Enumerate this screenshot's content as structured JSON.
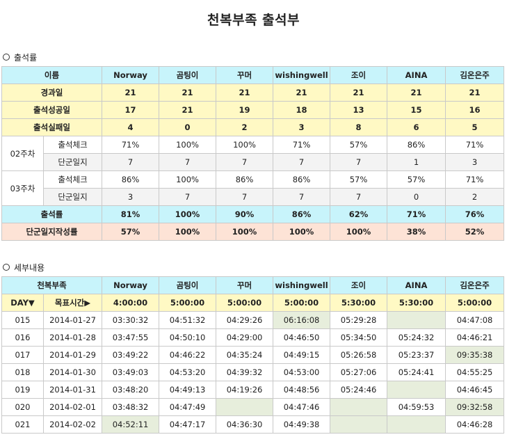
{
  "title": "천복부족 출석부",
  "section1": {
    "title": "출석률",
    "header": [
      "이름",
      "Norway",
      "곰팅이",
      "꾸머",
      "wishingwell",
      "조이",
      "AINA",
      "김온은주"
    ],
    "elapsed": {
      "label": "경과일",
      "values": [
        "21",
        "21",
        "21",
        "21",
        "21",
        "21",
        "21"
      ]
    },
    "success": {
      "label": "출석성공일",
      "values": [
        "17",
        "21",
        "19",
        "18",
        "13",
        "15",
        "16"
      ]
    },
    "fail": {
      "label": "출석실패일",
      "values": [
        "4",
        "0",
        "2",
        "3",
        "8",
        "6",
        "5"
      ]
    },
    "weeks": [
      {
        "week": "02주차",
        "check": {
          "label": "출석체크",
          "values": [
            "71%",
            "100%",
            "100%",
            "71%",
            "57%",
            "86%",
            "71%"
          ]
        },
        "log": {
          "label": "단군일지",
          "values": [
            "7",
            "7",
            "7",
            "7",
            "7",
            "1",
            "3"
          ]
        }
      },
      {
        "week": "03주차",
        "check": {
          "label": "출석체크",
          "values": [
            "86%",
            "100%",
            "86%",
            "86%",
            "57%",
            "57%",
            "71%"
          ]
        },
        "log": {
          "label": "단군일지",
          "values": [
            "3",
            "7",
            "7",
            "7",
            "7",
            "0",
            "2"
          ]
        }
      }
    ],
    "attendance_rate": {
      "label": "출석률",
      "values": [
        "81%",
        "100%",
        "90%",
        "86%",
        "62%",
        "71%",
        "76%"
      ]
    },
    "log_rate": {
      "label": "단군일지작성률",
      "values": [
        "57%",
        "100%",
        "100%",
        "100%",
        "100%",
        "38%",
        "52%"
      ]
    }
  },
  "section2": {
    "title": "세부내용",
    "header": [
      "천복부족",
      "Norway",
      "곰팅이",
      "꾸머",
      "wishingwell",
      "조이",
      "AINA",
      "김온은주"
    ],
    "day_label": "DAY▼",
    "target_label": "목표시간▶",
    "targets": [
      "4:00:00",
      "5:00:00",
      "5:00:00",
      "5:00:00",
      "5:30:00",
      "5:30:00",
      "5:00:00"
    ],
    "rows": [
      {
        "day": "015",
        "date": "2014-01-27",
        "times": [
          "03:30:32",
          "04:51:32",
          "04:29:26",
          "06:16:08",
          "05:29:28",
          "",
          "04:47:08"
        ],
        "late": [
          false,
          false,
          false,
          true,
          false,
          true,
          false
        ]
      },
      {
        "day": "016",
        "date": "2014-01-28",
        "times": [
          "03:47:55",
          "04:50:10",
          "04:29:00",
          "04:46:50",
          "05:34:50",
          "05:24:32",
          "04:46:21"
        ],
        "late": [
          false,
          false,
          false,
          false,
          false,
          false,
          false
        ]
      },
      {
        "day": "017",
        "date": "2014-01-29",
        "times": [
          "03:49:22",
          "04:46:22",
          "04:35:24",
          "04:49:15",
          "05:26:58",
          "05:23:37",
          "09:35:38"
        ],
        "late": [
          false,
          false,
          false,
          false,
          false,
          false,
          true
        ]
      },
      {
        "day": "018",
        "date": "2014-01-30",
        "times": [
          "03:49:03",
          "04:53:20",
          "04:39:32",
          "04:53:00",
          "05:27:06",
          "05:24:41",
          "04:55:25"
        ],
        "late": [
          false,
          false,
          false,
          false,
          false,
          false,
          false
        ]
      },
      {
        "day": "019",
        "date": "2014-01-31",
        "times": [
          "03:48:20",
          "04:49:13",
          "04:19:26",
          "04:48:56",
          "05:24:46",
          "",
          "04:46:45"
        ],
        "late": [
          false,
          false,
          false,
          false,
          false,
          true,
          false
        ]
      },
      {
        "day": "020",
        "date": "2014-02-01",
        "times": [
          "03:48:32",
          "04:47:49",
          "",
          "04:47:46",
          "",
          "04:59:53",
          "09:32:58"
        ],
        "late": [
          false,
          false,
          true,
          false,
          true,
          false,
          true
        ]
      },
      {
        "day": "021",
        "date": "2014-02-02",
        "times": [
          "04:52:11",
          "04:47:17",
          "04:36:30",
          "04:49:38",
          "",
          "",
          "04:46:28"
        ],
        "late": [
          true,
          false,
          false,
          false,
          true,
          true,
          false
        ]
      }
    ]
  }
}
